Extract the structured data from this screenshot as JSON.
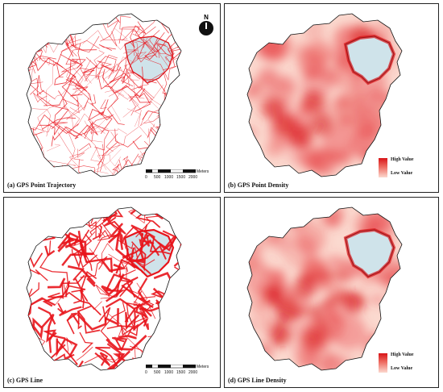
{
  "colors": {
    "route_red": "#e8141b",
    "district_fill": "#cfe3ea",
    "boundary": "#111111",
    "density_high": "#d81418",
    "density_low": "#fbd9cf"
  },
  "panels": [
    {
      "id": "a",
      "caption": "(a) GPS Point Trajectory",
      "kind": "trajectory",
      "line_weight": "thin",
      "has_scalebar": true,
      "has_north": true
    },
    {
      "id": "b",
      "caption": "(b) GPS Point Density",
      "kind": "density",
      "has_legend": true
    },
    {
      "id": "c",
      "caption": "(c) GPS Line",
      "kind": "trajectory",
      "line_weight": "thick",
      "has_scalebar": true
    },
    {
      "id": "d",
      "caption": "(d) GPS Line Density",
      "kind": "density",
      "has_legend": true
    }
  ],
  "north_arrow": {
    "label": "N",
    "icon": "north-arrow-icon"
  },
  "scalebar": {
    "ticks": [
      "0",
      "500",
      "1000",
      "1500",
      "2000"
    ],
    "units": "Meters"
  },
  "legend": {
    "high": "High Value",
    "low": "Low Value"
  }
}
